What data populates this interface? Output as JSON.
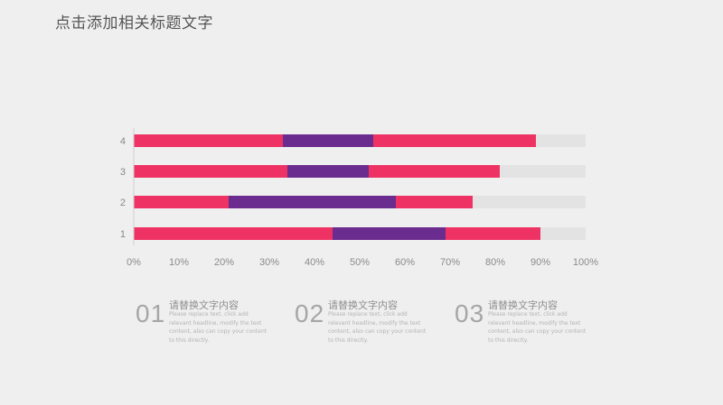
{
  "page": {
    "title": "点击添加相关标题文字"
  },
  "chart_data": {
    "type": "bar",
    "orientation": "horizontal",
    "stacked": true,
    "categories": [
      "1",
      "2",
      "3",
      "4"
    ],
    "series": [
      {
        "values": [
          44,
          21,
          34,
          33
        ],
        "color": "#ee3364"
      },
      {
        "values": [
          25,
          37,
          18,
          20
        ],
        "color": "#6b2c8f"
      },
      {
        "values": [
          21,
          17,
          29,
          36
        ],
        "color": "#ee3364"
      },
      {
        "values": [
          10,
          25,
          19,
          11
        ],
        "color": "#e3e3e3"
      }
    ],
    "xlim": [
      0,
      100
    ],
    "xticks": [
      "0%",
      "10%",
      "20%",
      "30%",
      "40%",
      "50%",
      "60%",
      "70%",
      "80%",
      "90%",
      "100%"
    ],
    "grid": false,
    "legend": "none"
  },
  "info_blocks": [
    {
      "number": "01",
      "heading": "请替换文字内容",
      "body": "Please replace text, click add relevant headline, modify the text content, also can copy your content to this directly."
    },
    {
      "number": "02",
      "heading": "请替换文字内容",
      "body": "Please replace text, click add relevant headline, modify the text content, also can copy your content to this directly."
    },
    {
      "number": "03",
      "heading": "请替换文字内容",
      "body": "Please replace text, click add relevant headline, modify the text content, also can copy your content to this directly."
    }
  ]
}
